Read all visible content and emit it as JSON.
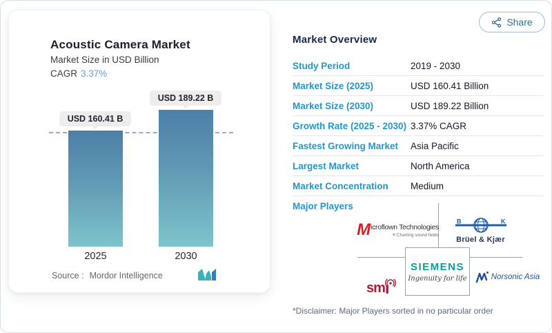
{
  "header": {
    "share_label": "Share"
  },
  "card": {
    "title": "Acoustic Camera Market",
    "subtitle": "Market Size in USD Billion",
    "cagr_label": "CAGR",
    "cagr_value": "3.37%",
    "source_label": "Source :",
    "source_value": "Mordor Intelligence",
    "x_labels": [
      "2025",
      "2030"
    ]
  },
  "chart_data": {
    "type": "bar",
    "categories": [
      "2025",
      "2030"
    ],
    "values": [
      160.41,
      189.22
    ],
    "unit": "USD Billion",
    "bar_labels": [
      "USD 160.41 B",
      "USD 189.22 B"
    ],
    "title": "Acoustic Camera Market",
    "ylabel": "Market Size in USD Billion",
    "ylim": [
      0,
      200
    ],
    "dashed_reference_value": 160.41,
    "legend": "none",
    "colors": {
      "bar_top": "#4d7fa7",
      "bar_bottom": "#7ec4cb",
      "dashed_line": "#94abbf"
    }
  },
  "overview": {
    "title": "Market Overview",
    "rows": [
      {
        "label": "Study Period",
        "value": "2019 - 2030"
      },
      {
        "label": "Market Size (2025)",
        "value": "USD 160.41 Billion"
      },
      {
        "label": "Market Size (2030)",
        "value": "USD 189.22 Billion"
      },
      {
        "label": "Growth Rate (2025 - 2030)",
        "value": "3.37% CAGR"
      },
      {
        "label": "Fastest Growing Market",
        "value": "Asia Pacific"
      },
      {
        "label": "Largest Market",
        "value": "North America"
      },
      {
        "label": "Market Concentration",
        "value": "Medium"
      }
    ],
    "major_players_label": "Major Players",
    "disclaimer": "*Disclaimer: Major Players sorted in no particular order"
  },
  "players": {
    "microflown": {
      "initial": "M",
      "rest": "icroflown Technologies",
      "tagline_mark": "≡",
      "tagline": "Charting sound fields"
    },
    "bruel_kjaer": {
      "b": "B",
      "k": "K",
      "name": "Brüel & Kjær"
    },
    "smi": {
      "text": "sm"
    },
    "siemens": {
      "name": "SIEMENS",
      "tagline": "Ingenuity for life"
    },
    "norsonic": {
      "name": "Norsonic Asia"
    }
  }
}
